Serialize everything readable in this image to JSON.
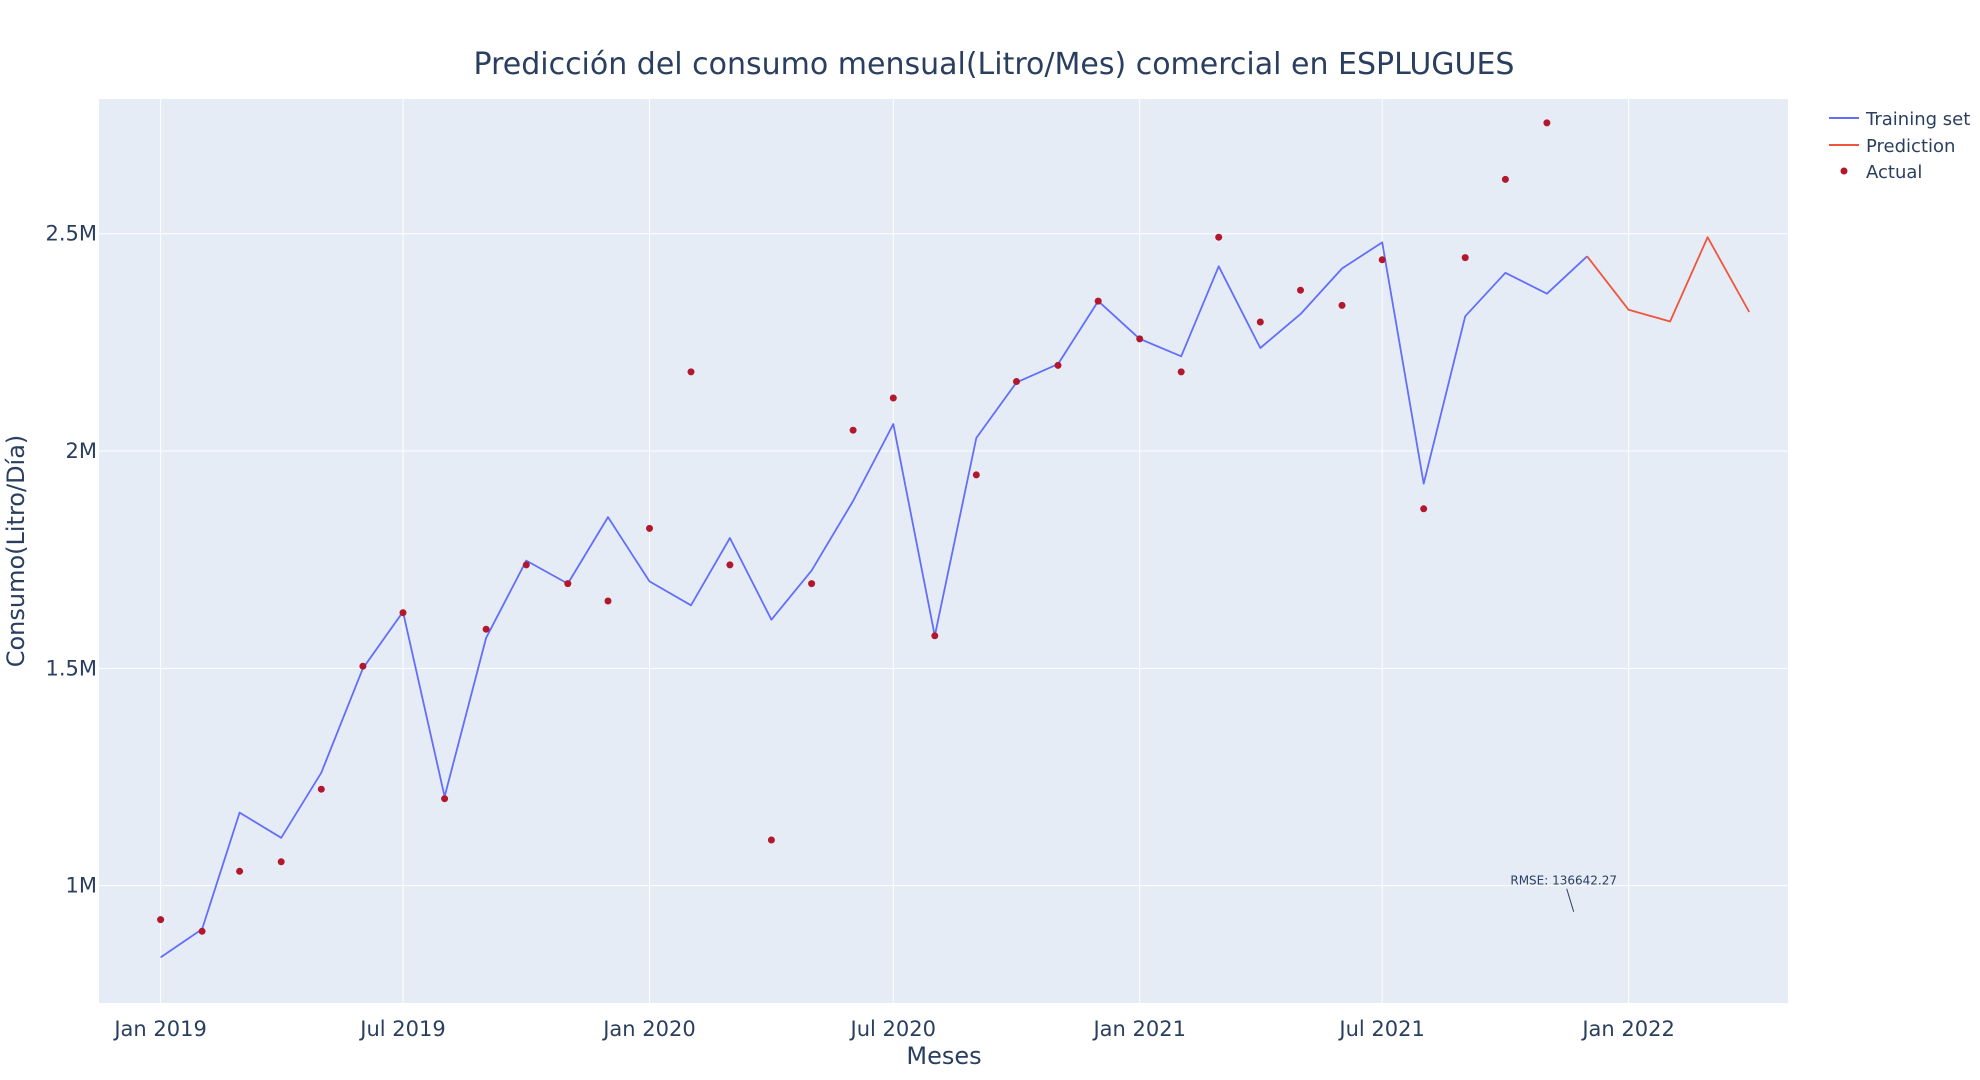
{
  "chart_data": {
    "type": "line",
    "title": "Predicción del consumo mensual(Litro/Mes) comercial en ESPLUGUES",
    "xlabel": "Meses",
    "ylabel": "Consumo(Litro/Día)",
    "x_range": [
      "2018-11-16",
      "2022-04-30"
    ],
    "ylim": [
      730000,
      2810000
    ],
    "x_ticks": [
      {
        "date": "2019-01-01",
        "label": "Jan 2019"
      },
      {
        "date": "2019-07-01",
        "label": "Jul 2019"
      },
      {
        "date": "2020-01-01",
        "label": "Jan 2020"
      },
      {
        "date": "2020-07-01",
        "label": "Jul 2020"
      },
      {
        "date": "2021-01-01",
        "label": "Jan 2021"
      },
      {
        "date": "2021-07-01",
        "label": "Jul 2021"
      },
      {
        "date": "2022-01-01",
        "label": "Jan 2022"
      }
    ],
    "y_ticks": [
      {
        "value": 1000000,
        "label": "1M"
      },
      {
        "value": 1500000,
        "label": "1.5M"
      },
      {
        "value": 2000000,
        "label": "2M"
      },
      {
        "value": 2500000,
        "label": "2.5M"
      }
    ],
    "grid": true,
    "legend_position": "top-right",
    "series": [
      {
        "name": "Training set",
        "mode": "lines",
        "color": "#636efa",
        "x": [
          "2019-01-01",
          "2019-02-01",
          "2019-03-01",
          "2019-04-01",
          "2019-05-01",
          "2019-06-01",
          "2019-07-01",
          "2019-08-01",
          "2019-09-01",
          "2019-10-01",
          "2019-11-01",
          "2019-12-01",
          "2020-01-01",
          "2020-02-01",
          "2020-03-01",
          "2020-04-01",
          "2020-05-01",
          "2020-06-01",
          "2020-07-01",
          "2020-08-01",
          "2020-09-01",
          "2020-10-01",
          "2020-11-01",
          "2020-12-01",
          "2021-01-01",
          "2021-02-01",
          "2021-03-01",
          "2021-04-01",
          "2021-05-01",
          "2021-06-01",
          "2021-07-01",
          "2021-08-01",
          "2021-09-01",
          "2021-10-01",
          "2021-11-01",
          "2021-12-01"
        ],
        "y": [
          835000,
          900000,
          1168000,
          1110000,
          1260000,
          1500000,
          1630000,
          1205000,
          1570000,
          1748000,
          1695000,
          1848000,
          1700000,
          1645000,
          1800000,
          1612000,
          1725000,
          1885000,
          2062000,
          1575000,
          2030000,
          2158000,
          2200000,
          2345000,
          2258000,
          2218000,
          2425000,
          2237000,
          2315000,
          2420000,
          2480000,
          1925000,
          2310000,
          2410000,
          2362000,
          2448000
        ]
      },
      {
        "name": "Prediction",
        "mode": "lines",
        "color": "#ef553b",
        "x": [
          "2021-12-01",
          "2022-01-01",
          "2022-02-01",
          "2022-03-01",
          "2022-04-01"
        ],
        "y": [
          2448000,
          2325000,
          2298000,
          2492000,
          2320000
        ]
      },
      {
        "name": "Actual",
        "mode": "markers",
        "color": "#b2182b",
        "x": [
          "2019-01-01",
          "2019-02-01",
          "2019-03-01",
          "2019-04-01",
          "2019-05-01",
          "2019-06-01",
          "2019-07-01",
          "2019-08-01",
          "2019-09-01",
          "2019-10-01",
          "2019-11-01",
          "2019-12-01",
          "2020-01-01",
          "2020-02-01",
          "2020-03-01",
          "2020-04-01",
          "2020-05-01",
          "2020-06-01",
          "2020-07-01",
          "2020-08-01",
          "2020-09-01",
          "2020-10-01",
          "2020-11-01",
          "2020-12-01",
          "2021-01-01",
          "2021-02-01",
          "2021-03-01",
          "2021-04-01",
          "2021-05-01",
          "2021-06-01",
          "2021-07-01",
          "2021-08-01",
          "2021-09-01",
          "2021-10-01",
          "2021-11-01"
        ],
        "y": [
          922000,
          895000,
          1033000,
          1055000,
          1222000,
          1505000,
          1628000,
          1200000,
          1590000,
          1738000,
          1695000,
          1655000,
          1822000,
          2182000,
          1738000,
          1105000,
          1695000,
          2048000,
          2122000,
          1575000,
          1945000,
          2160000,
          2197000,
          2345000,
          2258000,
          2182000,
          2492000,
          2297000,
          2370000,
          2335000,
          2440000,
          1867000,
          2445000,
          2625000,
          2755000
        ]
      }
    ],
    "annotations": [
      {
        "text": "RMSE: 136642.27",
        "x": "2021-11-21",
        "y": 940000
      }
    ]
  }
}
